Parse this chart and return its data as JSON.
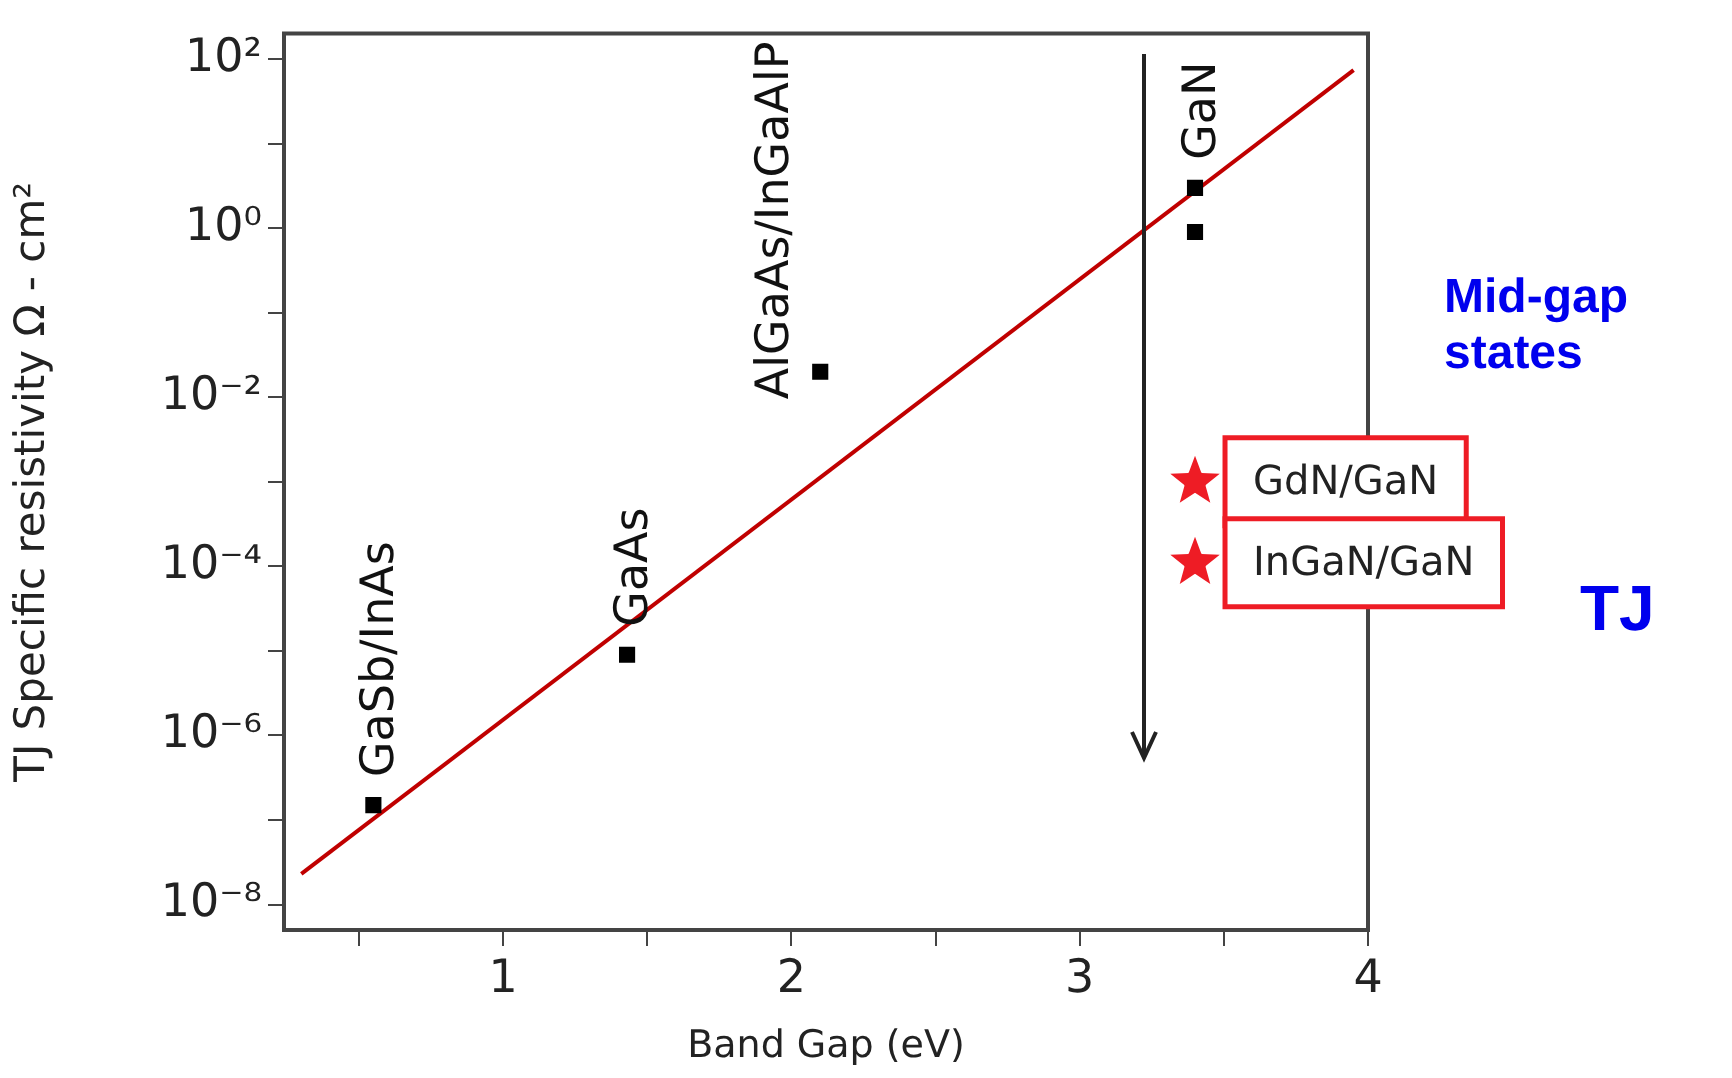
{
  "chart_data": {
    "type": "scatter",
    "xlabel": "Band Gap (eV)",
    "ylabel": "TJ Specific resistivity Ω - cm²",
    "log": "y",
    "grid": false,
    "legend": false,
    "xlim": [
      0.24,
      4
    ],
    "xticks": [
      {
        "value": 0.5,
        "label": null
      },
      1,
      {
        "value": 1.5,
        "label": null
      },
      2,
      {
        "value": 2.5,
        "label": null
      },
      3,
      {
        "value": 3.5,
        "label": null
      },
      4
    ],
    "ylim": [
      5e-09,
      200
    ],
    "yticks": [
      {
        "value": 1e-08,
        "label": "10⁻⁸"
      },
      {
        "value": 1e-07,
        "label": null
      },
      {
        "value": 1e-06,
        "label": "10⁻⁶"
      },
      {
        "value": 1e-05,
        "label": null
      },
      {
        "value": 0.0001,
        "label": "10⁻⁴"
      },
      {
        "value": 0.001,
        "label": null
      },
      {
        "value": 0.01,
        "label": "10⁻²"
      },
      {
        "value": 0.1,
        "label": null
      },
      {
        "value": 1,
        "label": "10⁰"
      },
      {
        "value": 10,
        "label": null
      },
      {
        "value": 100,
        "label": "10²"
      }
    ],
    "series": [
      {
        "type": "scatter",
        "color": "#000000",
        "marker": "square",
        "x": [
          0.55,
          1.43,
          2.1,
          3.4,
          3.4
        ],
        "values": [
          1.5e-07,
          9e-06,
          0.02,
          3,
          0.9
        ]
      },
      {
        "type": "scatter",
        "color": "#ee1c25",
        "marker": "star",
        "x": [
          3.4,
          3.4
        ],
        "values": [
          0.001,
          0.00011
        ]
      },
      {
        "type": "line",
        "color": "#c00000",
        "marker": "none",
        "x": [
          0.3,
          3.95
        ],
        "values": [
          2.3e-08,
          74
        ]
      }
    ],
    "annotations": [
      {
        "text": "GaSb/InAs",
        "x": 0.55,
        "y": 1.5e-07
      },
      {
        "text": "GaAs",
        "x": 1.43,
        "y": 9e-06
      },
      {
        "text": "AlGaAs/InGaAlP",
        "x": 2.1,
        "y": 0.02
      },
      {
        "text": "GaN",
        "x": 3.4,
        "y": 3
      },
      {
        "text": "GdN/GaN",
        "x": 3.4,
        "y": 0.001
      },
      {
        "text": "InGaN/GaN",
        "x": 3.4,
        "y": 0.00011
      },
      "Mid-gap states",
      "TJ"
    ]
  }
}
